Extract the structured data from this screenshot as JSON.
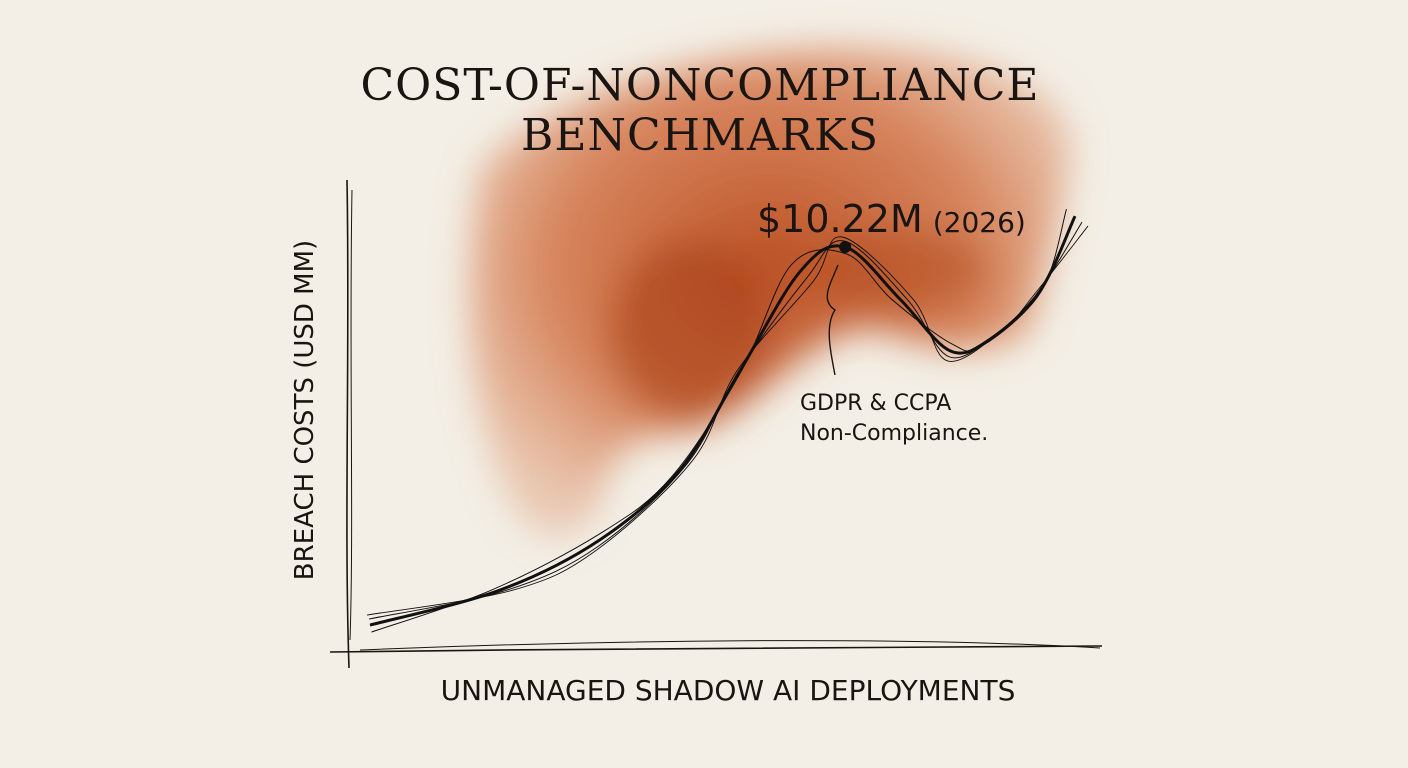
{
  "chart_data": {
    "type": "line",
    "title_lines": [
      "COST-OF-NONCOMPLIANCE",
      "BENCHMARKS"
    ],
    "xlabel": "UNMANAGED SHADOW AI DEPLOYMENTS",
    "ylabel": "BREACH COSTS (USD MM)",
    "xlim": [
      0,
      100
    ],
    "ylim": [
      0,
      11
    ],
    "grid": false,
    "legend": "none",
    "series": [
      {
        "name": "Breach costs",
        "color": "#111111",
        "x": [
          0,
          18.4,
          32.6,
          44,
          52.5,
          61,
          67.4,
          75.2,
          82.3,
          88,
          95,
          100
        ],
        "y": [
          0.68,
          1.56,
          2.83,
          4.6,
          7.1,
          9.6,
          10.22,
          8.9,
          7.6,
          7.9,
          9.1,
          11.0
        ]
      }
    ],
    "peak": {
      "x": 67.4,
      "y": 10.22,
      "label": "$10.22M",
      "year_label": "(2026)"
    },
    "annotation": {
      "lines": [
        "GDPR & CCPA",
        "Non-Compliance."
      ]
    },
    "wash_color": "#c2511f"
  }
}
